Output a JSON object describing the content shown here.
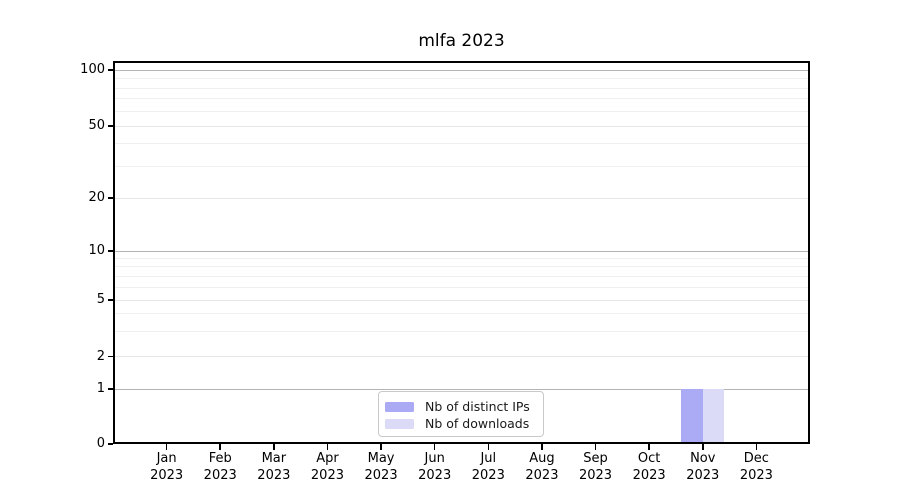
{
  "chart_data": {
    "type": "bar",
    "title": "mlfa 2023",
    "categories": [
      "Jan 2023",
      "Feb 2023",
      "Mar 2023",
      "Apr 2023",
      "May 2023",
      "Jun 2023",
      "Jul 2023",
      "Aug 2023",
      "Sep 2023",
      "Oct 2023",
      "Nov 2023",
      "Dec 2023"
    ],
    "series": [
      {
        "name": "Nb of distinct IPs",
        "color": "#aaaaf5",
        "values": [
          0,
          0,
          0,
          0,
          0,
          0,
          0,
          0,
          0,
          0,
          1,
          0
        ]
      },
      {
        "name": "Nb of downloads",
        "color": "#dbdbf8",
        "values": [
          0,
          0,
          0,
          0,
          0,
          0,
          0,
          0,
          0,
          0,
          1,
          0
        ]
      }
    ],
    "xlabel": "",
    "ylabel": "",
    "yscale": "symlog",
    "ylim": [
      0,
      112
    ],
    "y_ticks": [
      0,
      1,
      2,
      5,
      10,
      20,
      50,
      100
    ],
    "y_minor_ticks": [
      3,
      4,
      6,
      7,
      8,
      9,
      30,
      40,
      60,
      70,
      80,
      90
    ],
    "grid": "horizontal",
    "legend_position": "lower center"
  },
  "palette": {
    "spine": "#000000",
    "text": "#000000",
    "major_grid": "#b4b4b4",
    "labeled_grid": "#e6e6e6",
    "minor_grid": "#efefef",
    "legend_border": "#c9c9c9",
    "background": "#ffffff"
  }
}
